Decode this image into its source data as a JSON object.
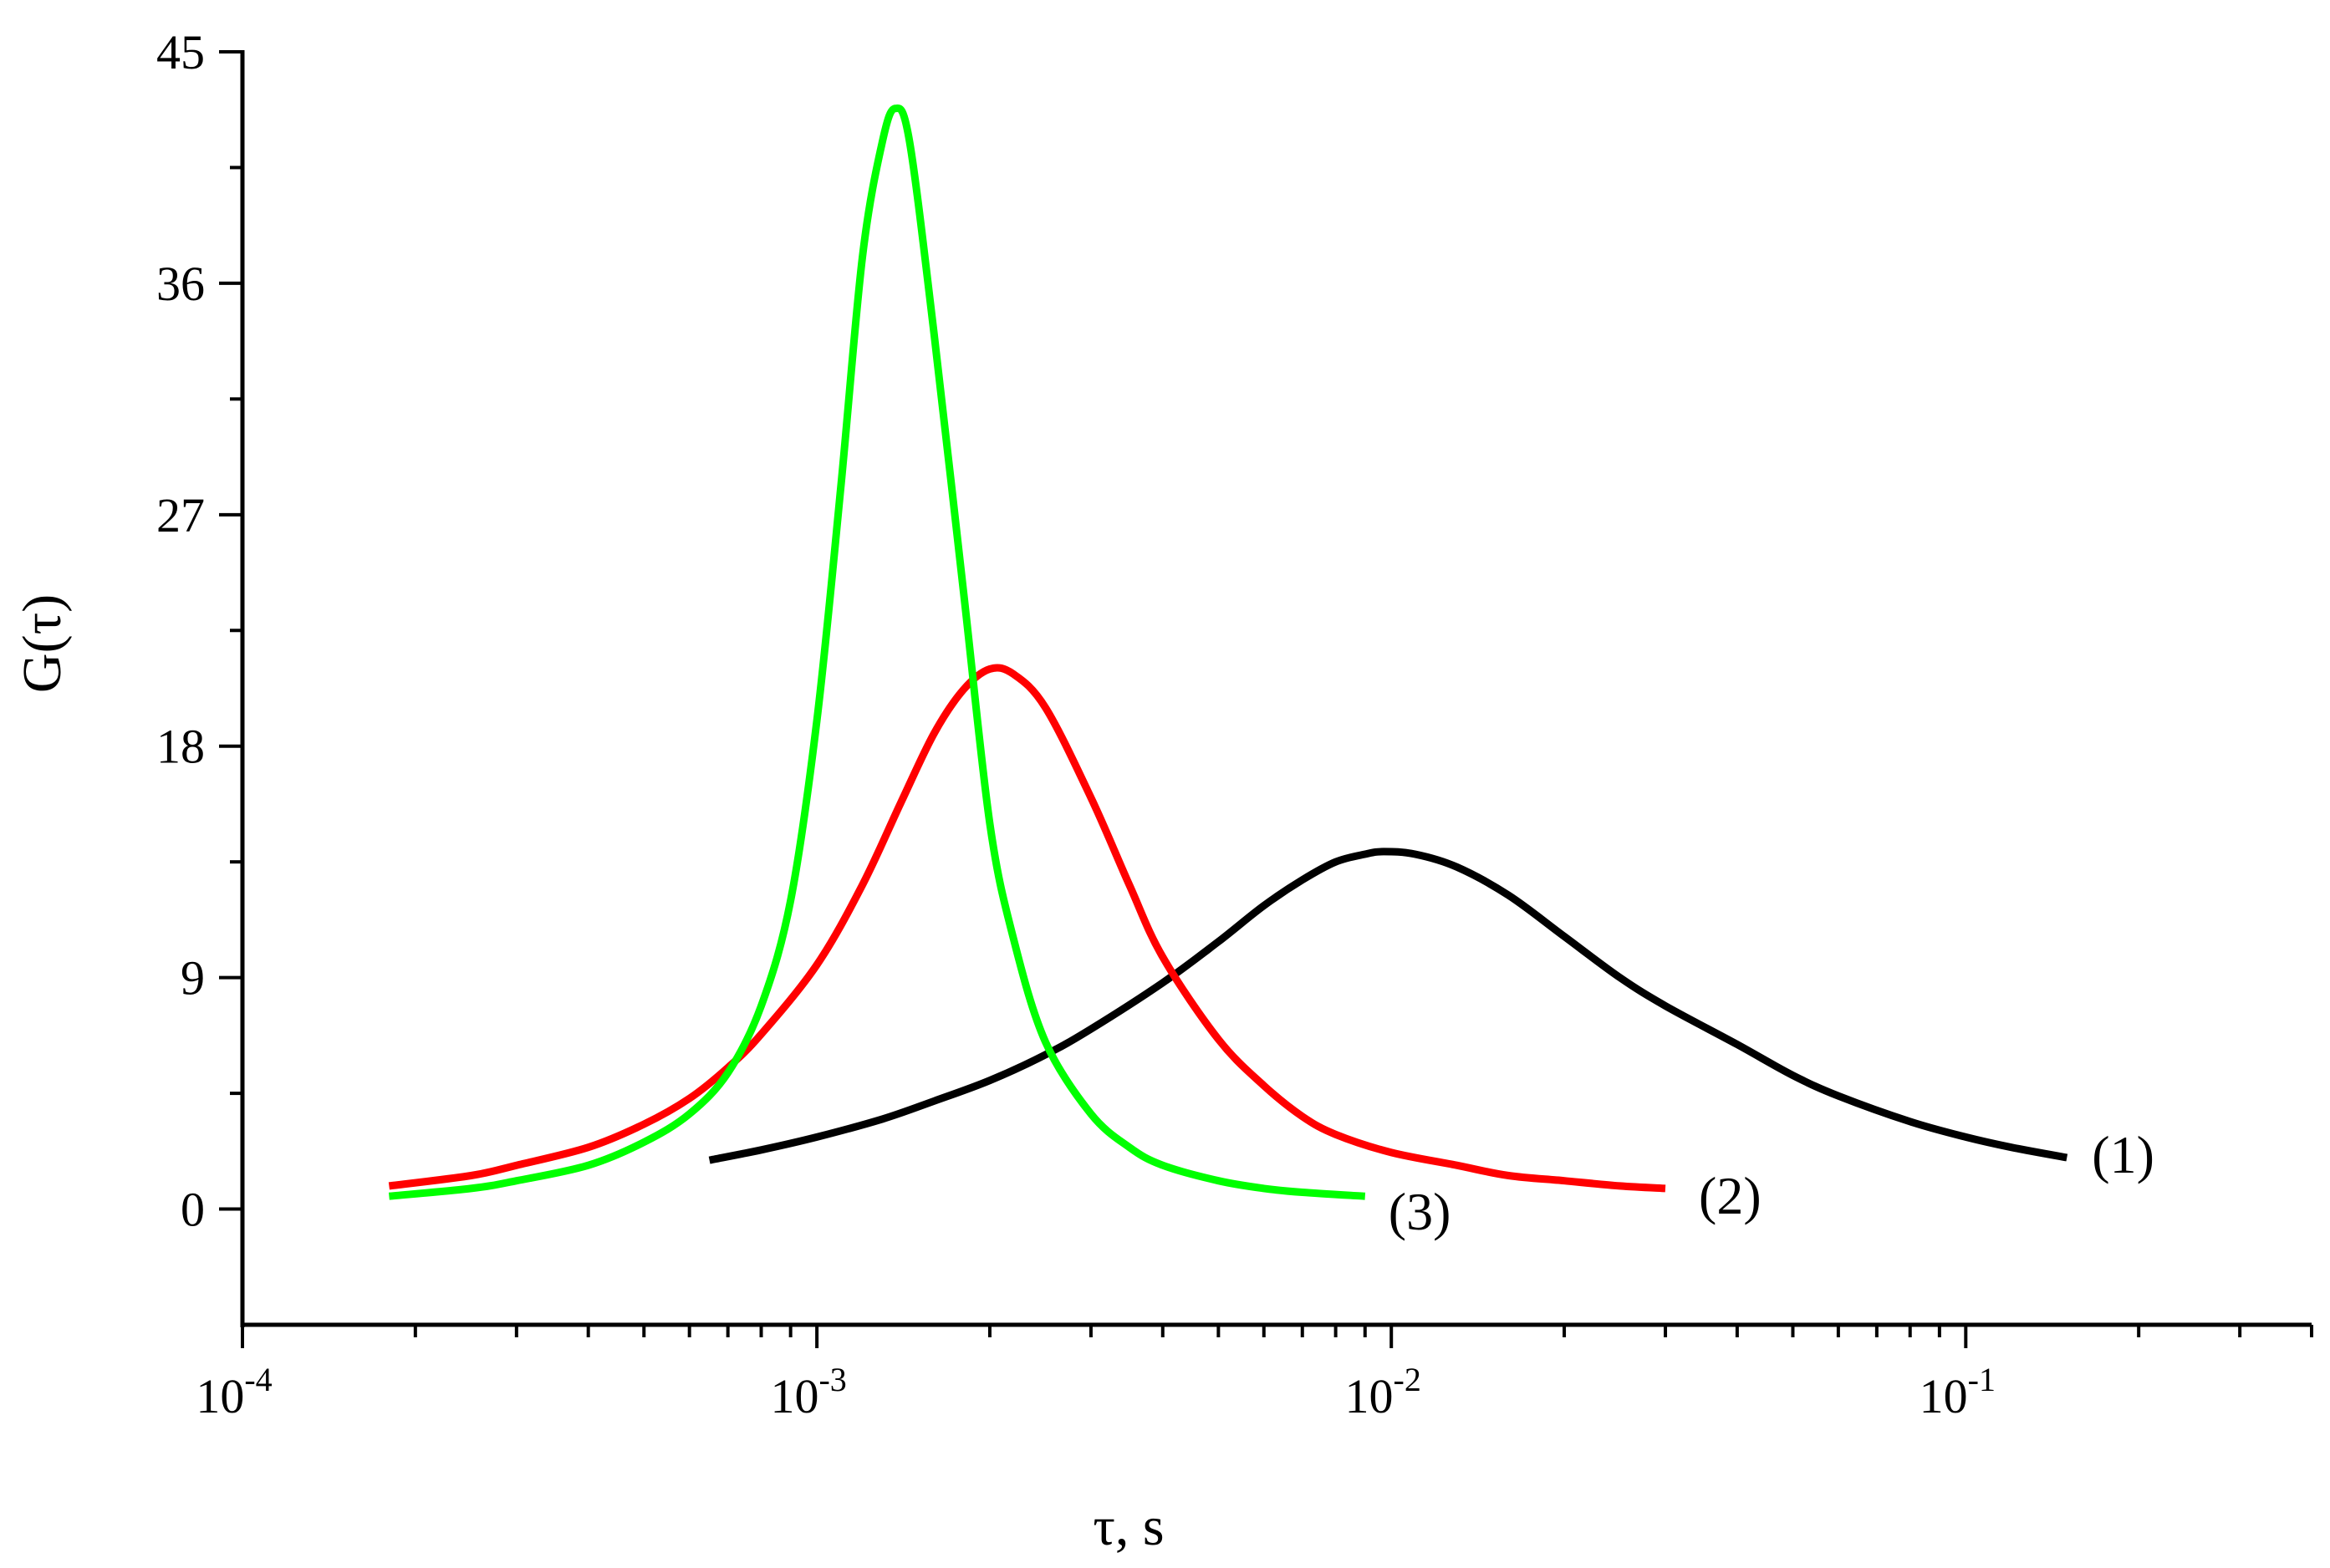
{
  "chart_data": {
    "type": "line",
    "title": "",
    "xlabel": "τ, s",
    "ylabel": "G(τ)",
    "xscale": "log",
    "xlim": [
      0.0001,
      0.4
    ],
    "ylim": [
      -4.5,
      45
    ],
    "grid": false,
    "x_ticks": [
      {
        "value": 0.0001,
        "base": "10",
        "exp": "-4"
      },
      {
        "value": 0.001,
        "base": "10",
        "exp": "-3"
      },
      {
        "value": 0.01,
        "base": "10",
        "exp": "-2"
      },
      {
        "value": 0.1,
        "base": "10",
        "exp": "-1"
      }
    ],
    "y_ticks": [
      0,
      9,
      18,
      27,
      36,
      45
    ],
    "series": [
      {
        "name": "(1)",
        "color": "#000000",
        "x": [
          0.00065,
          0.0008,
          0.001,
          0.0013,
          0.0016,
          0.002,
          0.0025,
          0.003,
          0.004,
          0.005,
          0.006,
          0.007,
          0.008,
          0.009,
          0.0097,
          0.011,
          0.013,
          0.016,
          0.02,
          0.025,
          0.03,
          0.04,
          0.05,
          0.06,
          0.08,
          0.1,
          0.12,
          0.15
        ],
        "y": [
          1.9,
          2.3,
          2.8,
          3.5,
          4.2,
          5.0,
          6.0,
          7.0,
          8.8,
          10.4,
          11.8,
          12.8,
          13.5,
          13.8,
          13.9,
          13.8,
          13.3,
          12.2,
          10.6,
          9.0,
          7.9,
          6.4,
          5.2,
          4.4,
          3.4,
          2.8,
          2.4,
          2.0
        ]
      },
      {
        "name": "(2)",
        "color": "#ff0000",
        "x": [
          0.00018,
          0.00025,
          0.0003,
          0.0004,
          0.0005,
          0.0006,
          0.0007,
          0.0008,
          0.001,
          0.0012,
          0.0014,
          0.0016,
          0.0018,
          0.002,
          0.0022,
          0.0025,
          0.003,
          0.0035,
          0.004,
          0.005,
          0.006,
          0.007,
          0.008,
          0.01,
          0.013,
          0.016,
          0.02,
          0.025,
          0.03
        ],
        "y": [
          0.9,
          1.3,
          1.7,
          2.4,
          3.3,
          4.3,
          5.5,
          6.8,
          9.5,
          12.6,
          15.8,
          18.5,
          20.2,
          21.0,
          20.8,
          19.5,
          16.0,
          12.6,
          9.8,
          6.6,
          4.8,
          3.6,
          2.9,
          2.2,
          1.7,
          1.3,
          1.1,
          0.9,
          0.8
        ]
      },
      {
        "name": "(3)",
        "color": "#00ff00",
        "x": [
          0.00018,
          0.00025,
          0.0003,
          0.0004,
          0.0005,
          0.0006,
          0.0007,
          0.0008,
          0.0009,
          0.001,
          0.0011,
          0.0012,
          0.0013,
          0.00137,
          0.00145,
          0.0016,
          0.0018,
          0.002,
          0.0022,
          0.0025,
          0.003,
          0.0035,
          0.004,
          0.005,
          0.006,
          0.007,
          0.009
        ],
        "y": [
          0.5,
          0.8,
          1.1,
          1.7,
          2.6,
          3.7,
          5.3,
          7.9,
          12.0,
          19.0,
          28.0,
          37.0,
          41.5,
          42.8,
          41.5,
          34.0,
          24.0,
          15.0,
          10.5,
          6.5,
          3.7,
          2.4,
          1.7,
          1.1,
          0.8,
          0.65,
          0.5
        ]
      }
    ]
  }
}
